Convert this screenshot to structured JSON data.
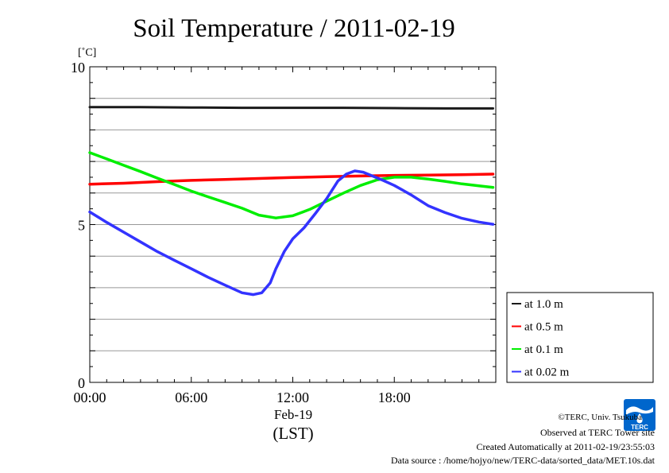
{
  "chart_data": {
    "type": "line",
    "title": "Soil Temperature / 2011-02-19",
    "ylabel": "[˚C]",
    "xlabel": "(LST)",
    "x_date_label": "Feb-19",
    "xlim": [
      "00:00",
      "24:00"
    ],
    "ylim": [
      0,
      10
    ],
    "y_ticks": [
      "0",
      "5",
      "10"
    ],
    "x_ticks": [
      "00:00",
      "06:00",
      "12:00",
      "18:00"
    ],
    "grid": true,
    "legend_position": "right",
    "series": [
      {
        "name": "at 1.0 m",
        "color": "#1a1a1a",
        "points": [
          [
            "00:00",
            8.72
          ],
          [
            "03:00",
            8.72
          ],
          [
            "06:00",
            8.71
          ],
          [
            "09:00",
            8.7
          ],
          [
            "12:00",
            8.7
          ],
          [
            "15:00",
            8.7
          ],
          [
            "18:00",
            8.69
          ],
          [
            "21:00",
            8.68
          ],
          [
            "23:50",
            8.68
          ]
        ]
      },
      {
        "name": "at 0.5 m",
        "color": "#ff0000",
        "points": [
          [
            "00:00",
            6.28
          ],
          [
            "02:00",
            6.31
          ],
          [
            "04:00",
            6.36
          ],
          [
            "06:00",
            6.4
          ],
          [
            "08:00",
            6.43
          ],
          [
            "10:00",
            6.46
          ],
          [
            "12:00",
            6.49
          ],
          [
            "14:00",
            6.52
          ],
          [
            "16:00",
            6.54
          ],
          [
            "18:00",
            6.56
          ],
          [
            "20:00",
            6.57
          ],
          [
            "22:00",
            6.58
          ],
          [
            "23:50",
            6.6
          ]
        ]
      },
      {
        "name": "at 0.1 m",
        "color": "#00ee00",
        "points": [
          [
            "00:00",
            7.28
          ],
          [
            "01:00",
            7.08
          ],
          [
            "02:00",
            6.88
          ],
          [
            "03:00",
            6.68
          ],
          [
            "04:00",
            6.47
          ],
          [
            "05:00",
            6.27
          ],
          [
            "06:00",
            6.06
          ],
          [
            "07:00",
            5.88
          ],
          [
            "08:00",
            5.7
          ],
          [
            "09:00",
            5.52
          ],
          [
            "10:00",
            5.3
          ],
          [
            "11:00",
            5.21
          ],
          [
            "12:00",
            5.28
          ],
          [
            "13:00",
            5.48
          ],
          [
            "14:00",
            5.74
          ],
          [
            "15:00",
            6.0
          ],
          [
            "16:00",
            6.24
          ],
          [
            "17:00",
            6.42
          ],
          [
            "18:00",
            6.5
          ],
          [
            "19:00",
            6.5
          ],
          [
            "20:00",
            6.44
          ],
          [
            "21:00",
            6.37
          ],
          [
            "22:00",
            6.29
          ],
          [
            "23:00",
            6.23
          ],
          [
            "23:50",
            6.18
          ]
        ]
      },
      {
        "name": "at 0.02 m",
        "color": "#3333ff",
        "points": [
          [
            "00:00",
            5.4
          ],
          [
            "01:00",
            5.07
          ],
          [
            "02:00",
            4.76
          ],
          [
            "03:00",
            4.45
          ],
          [
            "04:00",
            4.14
          ],
          [
            "05:00",
            3.87
          ],
          [
            "06:00",
            3.6
          ],
          [
            "07:00",
            3.33
          ],
          [
            "08:00",
            3.08
          ],
          [
            "09:00",
            2.84
          ],
          [
            "09:40",
            2.78
          ],
          [
            "10:10",
            2.84
          ],
          [
            "10:40",
            3.15
          ],
          [
            "11:00",
            3.6
          ],
          [
            "11:30",
            4.15
          ],
          [
            "12:00",
            4.55
          ],
          [
            "12:40",
            4.9
          ],
          [
            "13:20",
            5.35
          ],
          [
            "14:00",
            5.82
          ],
          [
            "14:40",
            6.38
          ],
          [
            "15:10",
            6.6
          ],
          [
            "15:40",
            6.7
          ],
          [
            "16:10",
            6.66
          ],
          [
            "16:40",
            6.55
          ],
          [
            "17:20",
            6.4
          ],
          [
            "18:00",
            6.24
          ],
          [
            "19:00",
            5.94
          ],
          [
            "20:00",
            5.6
          ],
          [
            "21:00",
            5.38
          ],
          [
            "22:00",
            5.2
          ],
          [
            "23:00",
            5.08
          ],
          [
            "23:50",
            5.01
          ]
        ]
      }
    ]
  },
  "footer": {
    "copyright": "©TERC, Univ. Tsukuba",
    "observed": "Observed at TERC Tower site",
    "created": "Created Automatically at 2011-02-19/23:55:03",
    "source": "Data source : /home/hojyo/new/TERC-data/sorted_data/MET.10s.dat"
  },
  "logo": {
    "text": "TERC",
    "color": "#0066cc"
  }
}
